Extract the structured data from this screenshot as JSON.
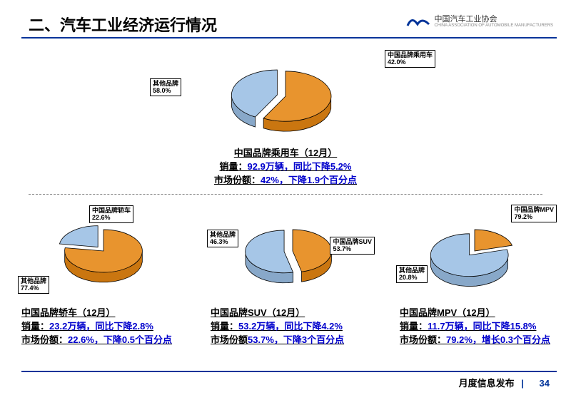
{
  "header": {
    "title": "二、汽车工业经济运行情况",
    "org_cn": "中国汽车工业协会",
    "org_en": "CHINA ASSOCIATION OF AUTOMOBILE MANUFACTURERS"
  },
  "footer": {
    "text": "月度信息发布",
    "page": "34"
  },
  "colors": {
    "accent": "#003399",
    "slice_other": "#e8942e",
    "slice_china": "#a6c6e7",
    "slice_stroke": "#000000"
  },
  "charts": {
    "main": {
      "type": "pie-3d-exploded",
      "slices": [
        {
          "key": "other",
          "label_title": "其他品牌",
          "label_value": "58.0%",
          "value": 58.0,
          "color": "#e8942e"
        },
        {
          "key": "china",
          "label_title": "中国品牌乘用车",
          "label_value": "42.0%",
          "value": 42.0,
          "color": "#a6c6e7"
        }
      ],
      "caption_l1": "中国品牌乘用车（12月）",
      "caption_l2a": "销量：",
      "caption_l2b": "92.9万辆，同比下降5.2%",
      "caption_l3a": "市场份额：",
      "caption_l3b": "42%，下降1.9个百分点"
    },
    "sedan": {
      "type": "pie-3d-exploded",
      "slices": [
        {
          "key": "other",
          "label_title": "其他品牌",
          "label_value": "77.4%",
          "value": 77.4,
          "color": "#e8942e"
        },
        {
          "key": "china",
          "label_title": "中国品牌轿车",
          "label_value": "22.6%",
          "value": 22.6,
          "color": "#a6c6e7"
        }
      ],
      "caption_l1": "中国品牌轿车（12月）",
      "caption_l2a": "销量：",
      "caption_l2b": "23.2万辆，同比下降2.8%",
      "caption_l3a": "市场份额：",
      "caption_l3b": "22.6%，下降0.5个百分点"
    },
    "suv": {
      "type": "pie-3d-exploded",
      "slices": [
        {
          "key": "other",
          "label_title": "其他品牌",
          "label_value": "46.3%",
          "value": 46.3,
          "color": "#e8942e"
        },
        {
          "key": "china",
          "label_title": "中国品牌SUV",
          "label_value": "53.7%",
          "value": 53.7,
          "color": "#a6c6e7"
        }
      ],
      "caption_l1": "中国品牌SUV（12月）",
      "caption_l2a": "销量：",
      "caption_l2b": "53.2万辆，同比下降4.2%",
      "caption_l3a": "市场份额",
      "caption_l3b": "53.7%，下降3个百分点"
    },
    "mpv": {
      "type": "pie-3d-exploded",
      "slices": [
        {
          "key": "other",
          "label_title": "其他品牌",
          "label_value": "20.8%",
          "value": 20.8,
          "color": "#e8942e"
        },
        {
          "key": "china",
          "label_title": "中国品牌MPV",
          "label_value": "79.2%",
          "value": 79.2,
          "color": "#a6c6e7"
        }
      ],
      "caption_l1": "中国品牌MPV（12月）",
      "caption_l2a": "销量：",
      "caption_l2b": "11.7万辆，同比下降15.8%",
      "caption_l3a": "市场份额：",
      "caption_l3b": "79.2%，增长0.3个百分点"
    }
  }
}
